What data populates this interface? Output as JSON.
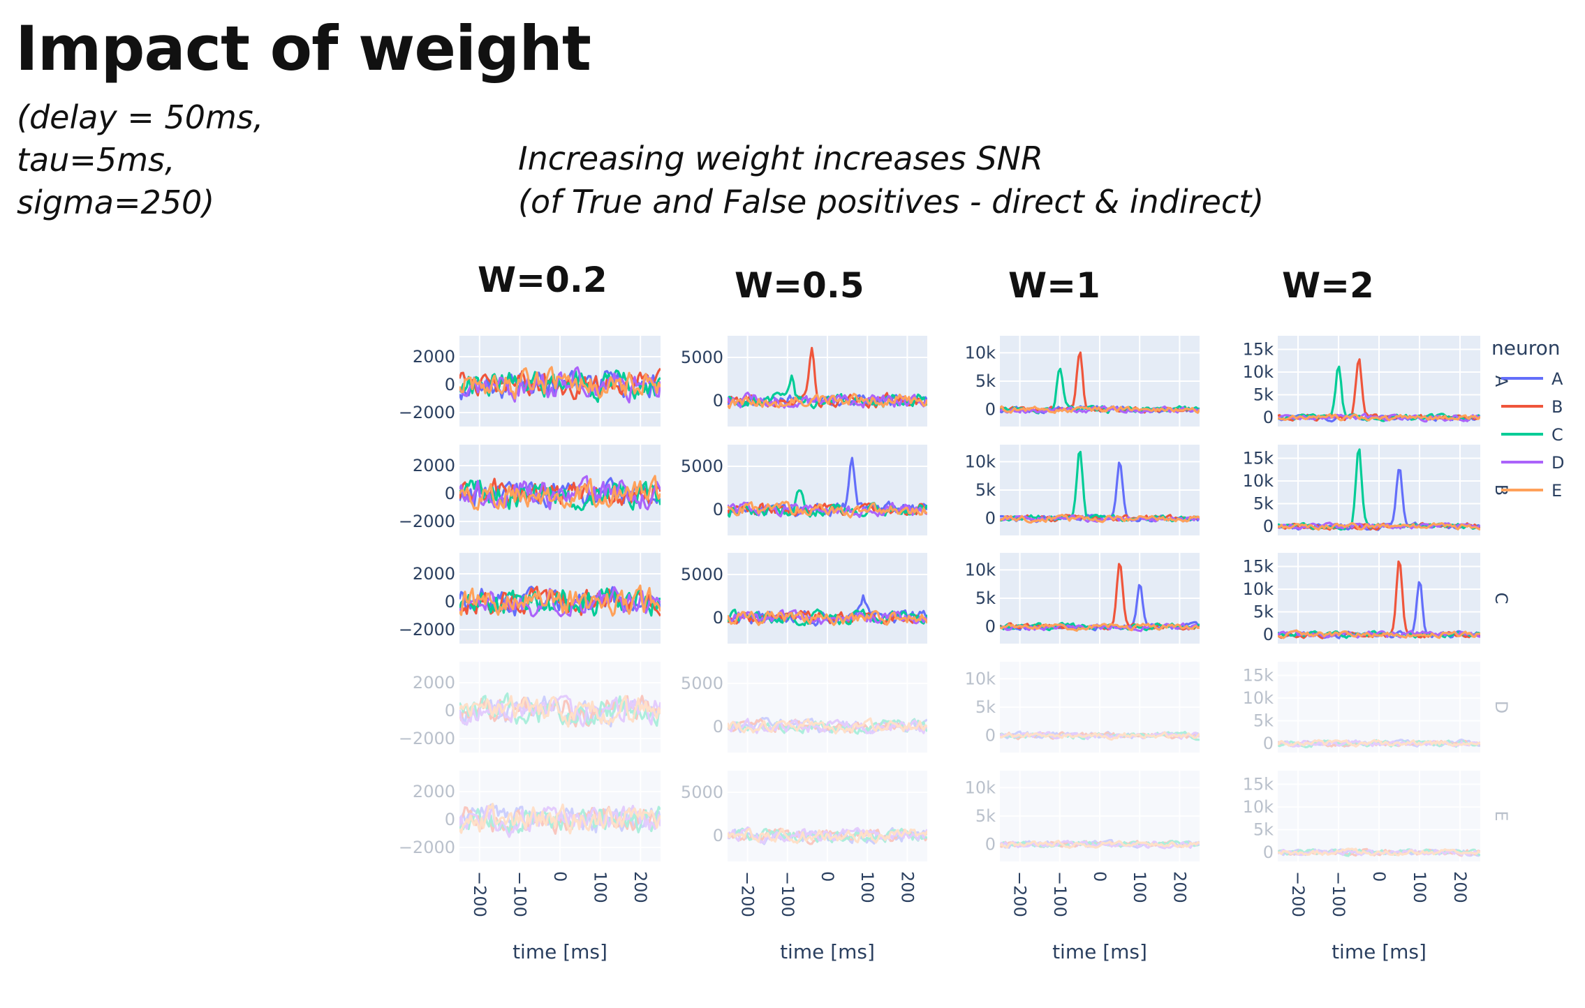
{
  "page": {
    "title": "Impact of weight",
    "params": [
      "(delay = 50ms,",
      "tau=5ms,",
      "sigma=250)"
    ],
    "note": [
      "Increasing weight increases SNR",
      "(of True and False positives - direct & indirect)"
    ]
  },
  "chart_data": {
    "type": "line",
    "x_range_ms": [
      -250,
      250
    ],
    "x_ticks": [
      "−200",
      "−100",
      "0",
      "100",
      "200"
    ],
    "x_tick_values": [
      -200,
      -100,
      0,
      100,
      200
    ],
    "xlabel": "time [ms]",
    "legend": {
      "title": "neuron",
      "placement": "right",
      "entries": [
        {
          "name": "A",
          "color": "#636efa"
        },
        {
          "name": "B",
          "color": "#ef553b"
        },
        {
          "name": "C",
          "color": "#00cc96"
        },
        {
          "name": "D",
          "color": "#ab63fa"
        },
        {
          "name": "E",
          "color": "#ffa15a"
        }
      ]
    },
    "facet_rows": [
      "A",
      "B",
      "C",
      "D",
      "E"
    ],
    "faded_rows": [
      "D",
      "E"
    ],
    "panels": [
      {
        "label": "W=0.2",
        "y_range": [
          -3000,
          3500
        ],
        "y_ticks": [
          {
            "v": 2000,
            "t": "2000"
          },
          {
            "v": 0,
            "t": "0"
          },
          {
            "v": -2000,
            "t": "−2000"
          }
        ],
        "noise": 900,
        "peaks": []
      },
      {
        "label": "W=0.5",
        "y_range": [
          -3000,
          7500
        ],
        "y_ticks": [
          {
            "v": 5000,
            "t": "5000"
          },
          {
            "v": 0,
            "t": "0"
          }
        ],
        "noise": 700,
        "peaks": [
          {
            "row": "A",
            "series": "B",
            "t": -40,
            "height": 6000
          },
          {
            "row": "A",
            "series": "C",
            "t": -90,
            "height": 2500
          },
          {
            "row": "B",
            "series": "A",
            "t": 60,
            "height": 6000
          },
          {
            "row": "B",
            "series": "C",
            "t": -70,
            "height": 2500
          },
          {
            "row": "C",
            "series": "A",
            "t": 90,
            "height": 2500
          }
        ]
      },
      {
        "label": "W=1",
        "y_range": [
          -3000,
          13000
        ],
        "y_ticks": [
          {
            "v": 10000,
            "t": "10k"
          },
          {
            "v": 5000,
            "t": "5k"
          },
          {
            "v": 0,
            "t": "0"
          }
        ],
        "noise": 500,
        "peaks": [
          {
            "row": "A",
            "series": "C",
            "t": -100,
            "height": 7500
          },
          {
            "row": "A",
            "series": "B",
            "t": -50,
            "height": 10000
          },
          {
            "row": "B",
            "series": "C",
            "t": -50,
            "height": 12000
          },
          {
            "row": "B",
            "series": "A",
            "t": 50,
            "height": 10000
          },
          {
            "row": "C",
            "series": "B",
            "t": 50,
            "height": 12000
          },
          {
            "row": "C",
            "series": "A",
            "t": 100,
            "height": 7500
          }
        ]
      },
      {
        "label": "W=2",
        "y_range": [
          -2000,
          18000
        ],
        "y_ticks": [
          {
            "v": 15000,
            "t": "15k"
          },
          {
            "v": 10000,
            "t": "10k"
          },
          {
            "v": 5000,
            "t": "5k"
          },
          {
            "v": 0,
            "t": "0"
          }
        ],
        "noise": 600,
        "peaks": [
          {
            "row": "A",
            "series": "C",
            "t": -100,
            "height": 11500
          },
          {
            "row": "A",
            "series": "B",
            "t": -50,
            "height": 13000
          },
          {
            "row": "B",
            "series": "C",
            "t": -50,
            "height": 17000
          },
          {
            "row": "B",
            "series": "A",
            "t": 50,
            "height": 13000
          },
          {
            "row": "C",
            "series": "B",
            "t": 50,
            "height": 17000
          },
          {
            "row": "C",
            "series": "A",
            "t": 100,
            "height": 12000
          }
        ]
      }
    ]
  }
}
